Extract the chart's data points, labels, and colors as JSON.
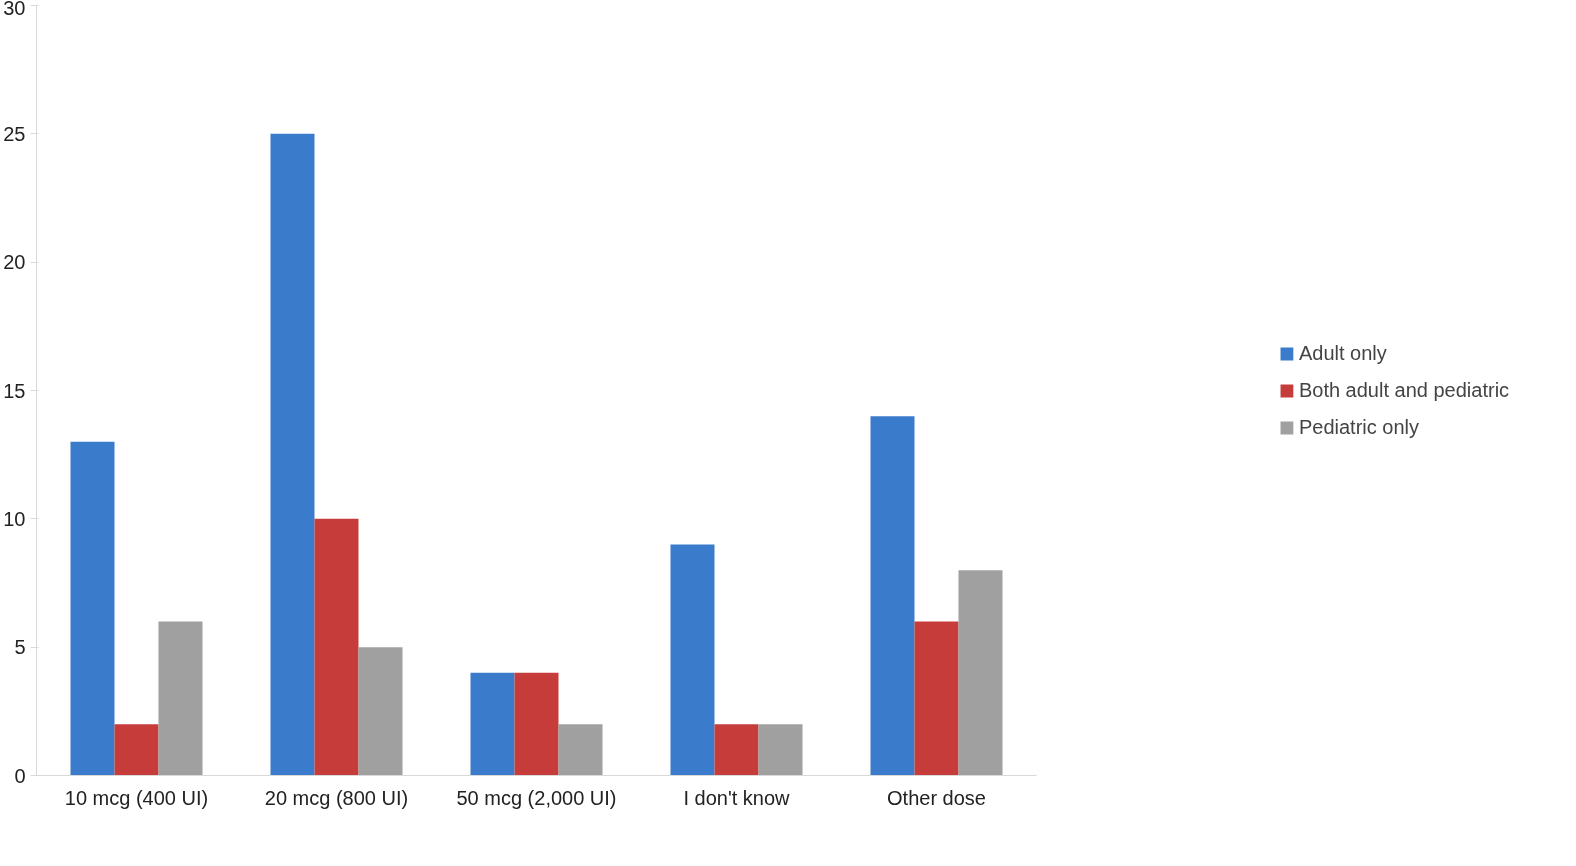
{
  "chart_data": {
    "type": "bar",
    "categories": [
      "10 mcg (400 UI)",
      "20 mcg (800 UI)",
      "50 mcg (2,000 UI)",
      "I don't know",
      "Other dose"
    ],
    "series": [
      {
        "name": "Adult only",
        "color": "#3a7bcc",
        "values": [
          13,
          25,
          4,
          9,
          14
        ]
      },
      {
        "name": "Both adult and pediatric",
        "color": "#c63c3a",
        "values": [
          2,
          10,
          4,
          2,
          6
        ]
      },
      {
        "name": "Pediatric only",
        "color": "#a0a0a0",
        "values": [
          6,
          5,
          2,
          2,
          8
        ]
      }
    ],
    "ylim": [
      0,
      30
    ],
    "yticks": [
      0,
      5,
      10,
      15,
      20,
      25,
      30
    ],
    "grid": false,
    "legend": "right"
  }
}
